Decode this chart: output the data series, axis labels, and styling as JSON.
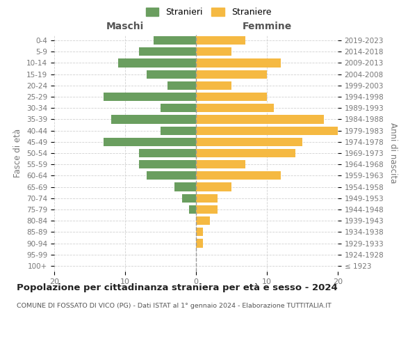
{
  "age_groups": [
    "100+",
    "95-99",
    "90-94",
    "85-89",
    "80-84",
    "75-79",
    "70-74",
    "65-69",
    "60-64",
    "55-59",
    "50-54",
    "45-49",
    "40-44",
    "35-39",
    "30-34",
    "25-29",
    "20-24",
    "15-19",
    "10-14",
    "5-9",
    "0-4"
  ],
  "birth_years": [
    "≤ 1923",
    "1924-1928",
    "1929-1933",
    "1934-1938",
    "1939-1943",
    "1944-1948",
    "1949-1953",
    "1954-1958",
    "1959-1963",
    "1964-1968",
    "1969-1973",
    "1974-1978",
    "1979-1983",
    "1984-1988",
    "1989-1993",
    "1994-1998",
    "1999-2003",
    "2004-2008",
    "2009-2013",
    "2014-2018",
    "2019-2023"
  ],
  "maschi": [
    0,
    0,
    0,
    0,
    0,
    1,
    2,
    3,
    7,
    8,
    8,
    13,
    5,
    12,
    5,
    13,
    4,
    7,
    11,
    8,
    6
  ],
  "femmine": [
    0,
    0,
    1,
    1,
    2,
    3,
    3,
    5,
    12,
    7,
    14,
    15,
    20,
    18,
    11,
    10,
    5,
    10,
    12,
    5,
    7
  ],
  "male_color": "#6a9e5f",
  "female_color": "#f5b942",
  "background_color": "#ffffff",
  "grid_color": "#cccccc",
  "title": "Popolazione per cittadinanza straniera per età e sesso - 2024",
  "subtitle": "COMUNE DI FOSSATO DI VICO (PG) - Dati ISTAT al 1° gennaio 2024 - Elaborazione TUTTITALIA.IT",
  "ylabel_left": "Fasce di età",
  "ylabel_right": "Anni di nascita",
  "xlabel_left": "Maschi",
  "xlabel_top_right": "Femmine",
  "legend_male": "Stranieri",
  "legend_female": "Straniere",
  "xlim": 20
}
